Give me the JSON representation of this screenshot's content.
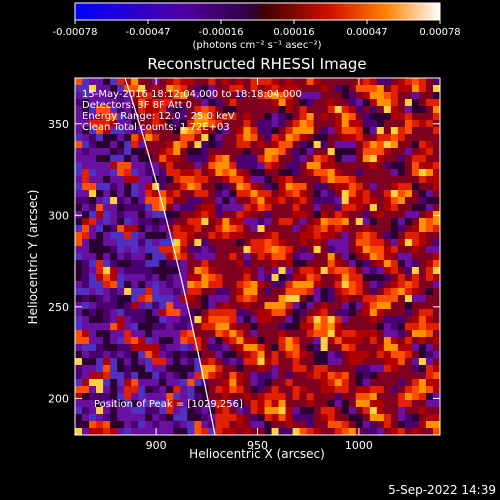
{
  "chart_data": {
    "type": "heatmap",
    "title": "Reconstructed RHESSI Image",
    "xlabel": "Heliocentric X (arcsec)",
    "ylabel": "Heliocentric Y (arcsec)",
    "xlim": [
      860,
      1040
    ],
    "ylim": [
      180,
      375
    ],
    "x_ticks": [
      900,
      950,
      1000
    ],
    "y_ticks": [
      200,
      250,
      300,
      350
    ],
    "colorbar": {
      "range": [
        -0.00078,
        0.00078
      ],
      "tick_labels": [
        "-0.00078",
        "-0.00047",
        "-0.00016",
        "0.00016",
        "0.00047",
        "0.00078"
      ],
      "unit_label": "(photons cm⁻² s⁻¹ asec⁻²)"
    },
    "annotations": [
      "15-May-2016 18:12:04.000 to 18:18:04.000",
      "Detectors: 3F 8F  Att 0",
      "Energy Range: 12.0 - 25.0 keV",
      "Clean    Total counts: 1.72E+03"
    ],
    "peak_label": "Position of Peak = [1029,256]",
    "timestamp": "5-Sep-2022 14:39"
  }
}
